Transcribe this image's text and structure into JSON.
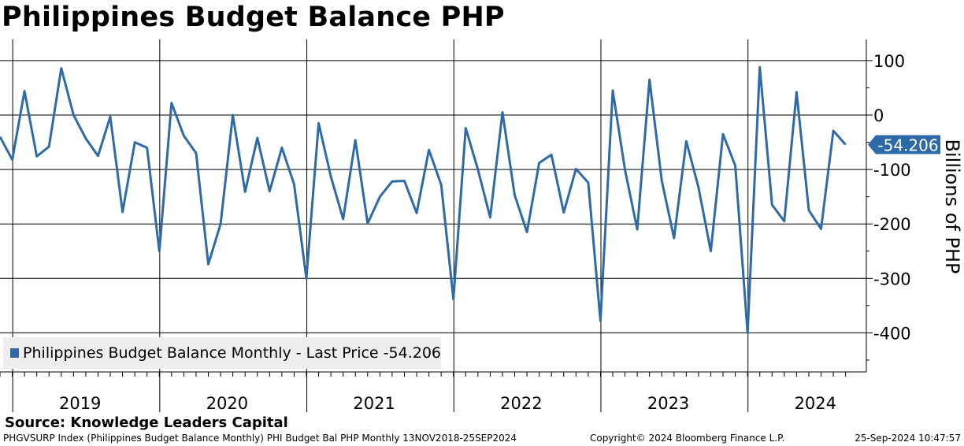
{
  "chart_data": {
    "type": "line",
    "title": "Philippines Budget Balance PHP",
    "ylabel": "Billions of PHP",
    "ylim": [
      -470,
      125
    ],
    "y_ticks": [
      100,
      0,
      -100,
      -200,
      -300,
      -400
    ],
    "x_tick_labels": [
      "2019",
      "2020",
      "2021",
      "2022",
      "2023",
      "2024"
    ],
    "grid": true,
    "legend_position": "bottom-left",
    "last_value_label": "-54.206",
    "series": [
      {
        "name": "Philippines Budget Balance Monthly - Last Price -54.206",
        "color": "#2e6aa8",
        "x": [
          "2018-11",
          "2018-12",
          "2019-01",
          "2019-02",
          "2019-03",
          "2019-04",
          "2019-05",
          "2019-06",
          "2019-07",
          "2019-08",
          "2019-09",
          "2019-10",
          "2019-11",
          "2019-12",
          "2020-01",
          "2020-02",
          "2020-03",
          "2020-04",
          "2020-05",
          "2020-06",
          "2020-07",
          "2020-08",
          "2020-09",
          "2020-10",
          "2020-11",
          "2020-12",
          "2021-01",
          "2021-02",
          "2021-03",
          "2021-04",
          "2021-05",
          "2021-06",
          "2021-07",
          "2021-08",
          "2021-09",
          "2021-10",
          "2021-11",
          "2021-12",
          "2022-01",
          "2022-02",
          "2022-03",
          "2022-04",
          "2022-05",
          "2022-06",
          "2022-07",
          "2022-08",
          "2022-09",
          "2022-10",
          "2022-11",
          "2022-12",
          "2023-01",
          "2023-02",
          "2023-03",
          "2023-04",
          "2023-05",
          "2023-06",
          "2023-07",
          "2023-08",
          "2023-09",
          "2023-10",
          "2023-11",
          "2023-12",
          "2024-01",
          "2024-02",
          "2024-03",
          "2024-04",
          "2024-05",
          "2024-06",
          "2024-07",
          "2024-08"
        ],
        "values": [
          -40,
          -82,
          44,
          -76,
          -58,
          86,
          0,
          -43,
          -75,
          -3,
          -178,
          -50,
          -60,
          -250,
          22,
          -38,
          -70,
          -274,
          -200,
          0,
          -141,
          -42,
          -140,
          -60,
          -127,
          -300,
          -15,
          -113,
          -191,
          -46,
          -199,
          -150,
          -122,
          -121,
          -180,
          -64,
          -128,
          -338,
          -24,
          -100,
          -188,
          5,
          -147,
          -215,
          -88,
          -73,
          -179,
          -99,
          -124,
          -378,
          45,
          -101,
          -210,
          65,
          -120,
          -226,
          -48,
          -133,
          -250,
          -35,
          -93,
          -400,
          88,
          -165,
          -195,
          42,
          -175,
          -209,
          -29,
          -54.206
        ]
      }
    ]
  },
  "legend": {
    "label": "Philippines Budget Balance Monthly - Last Price -54.206"
  },
  "source": "Source: Knowledge Leaders Capital",
  "footer": {
    "left": "PHGVSURP Index (Philippines Budget Balance Monthly) PHI Budget Bal PHP  Monthly 13NOV2018-25SEP2024",
    "middle": "Copyright© 2024 Bloomberg Finance L.P.",
    "right": "25-Sep-2024 10:47:57"
  }
}
